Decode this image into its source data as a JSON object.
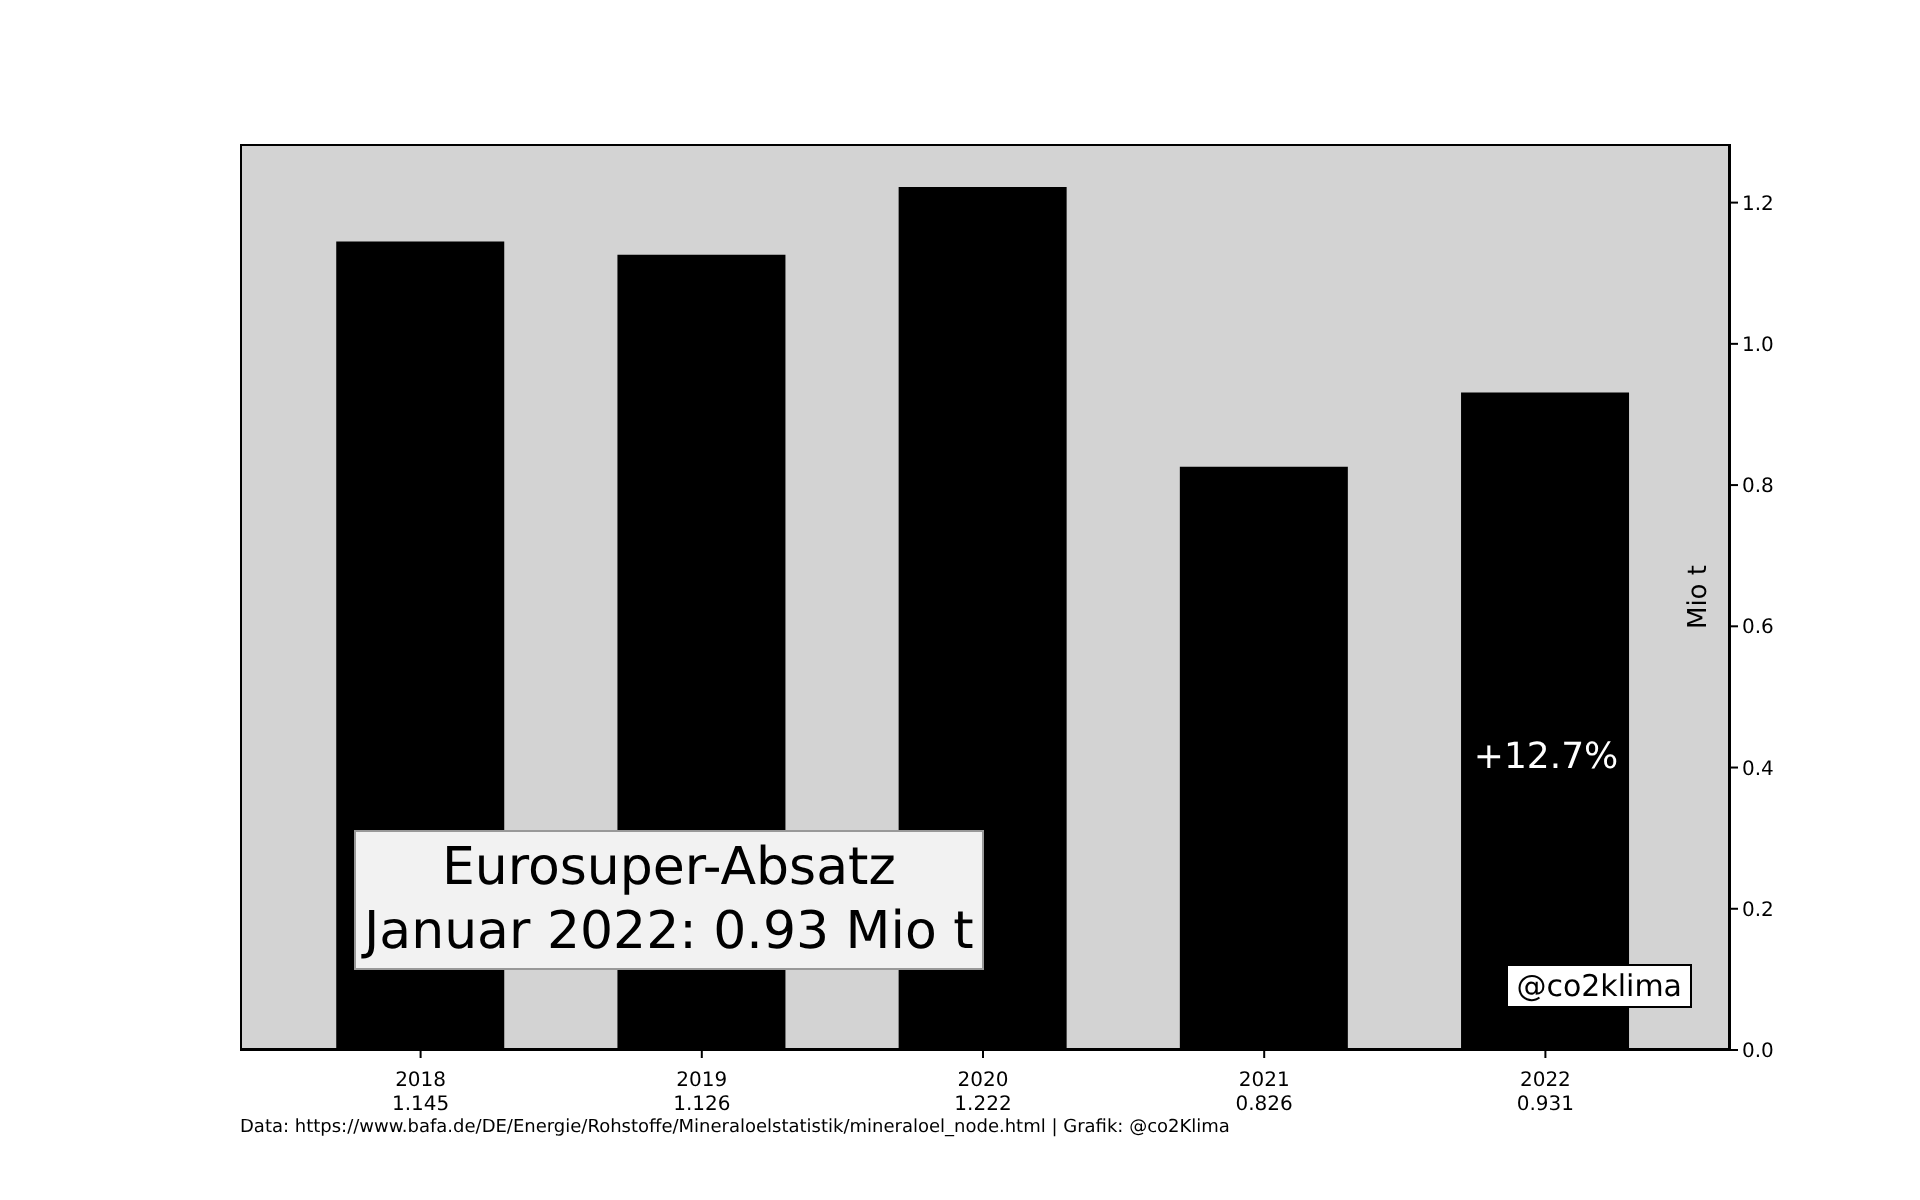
{
  "chart_data": {
    "type": "bar",
    "title": "Eurosuper-Absatz",
    "subtitle": "Januar 2022: 0.93 Mio t",
    "ylabel": "Mio t",
    "categories": [
      "2018",
      "2019",
      "2020",
      "2021",
      "2022"
    ],
    "values": [
      1.145,
      1.126,
      1.222,
      0.826,
      0.931
    ],
    "color": "#000000",
    "data_labels": true,
    "ylim": [
      0,
      1.283
    ],
    "yticks": [
      {
        "value": 0,
        "label": "0.0"
      },
      {
        "value": 0.2,
        "label": "0.2"
      },
      {
        "value": 0.4,
        "label": "0.4"
      },
      {
        "value": 0.6,
        "label": "0.6"
      },
      {
        "value": 0.8,
        "label": "0.8"
      },
      {
        "value": 1.0,
        "label": "1.0"
      },
      {
        "value": 1.2,
        "label": "1.2"
      }
    ],
    "grid": false,
    "annotations": [
      "+12.7%",
      "@co2klima",
      "Data: https://www.bafa.de/DE/Energie/Rohstoffe/Mineraloelstatistik/mineraloel_node.html | Grafik: @co2Klima"
    ]
  }
}
